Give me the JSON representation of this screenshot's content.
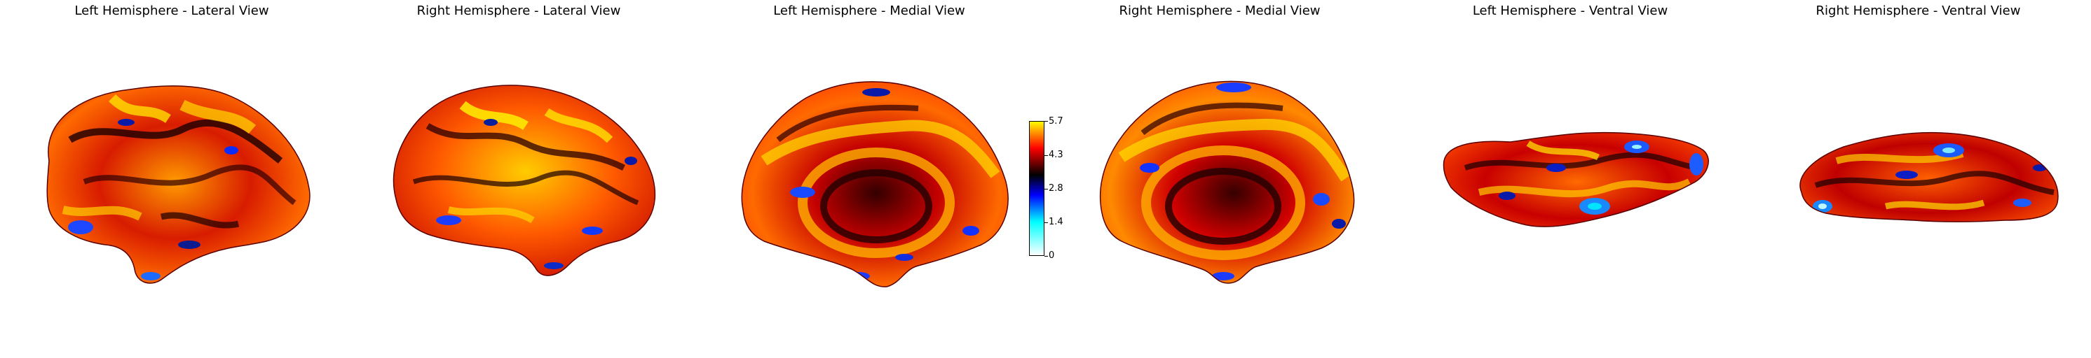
{
  "panels": [
    {
      "title": "Left Hemisphere - Lateral View",
      "view": "lateral",
      "hemisphere": "left"
    },
    {
      "title": "Right Hemisphere - Lateral View",
      "view": "lateral",
      "hemisphere": "right"
    },
    {
      "title": "Left Hemisphere - Medial View",
      "view": "medial",
      "hemisphere": "left"
    },
    {
      "title": "Right Hemisphere - Medial View",
      "view": "medial",
      "hemisphere": "right"
    },
    {
      "title": "Left Hemisphere - Ventral View",
      "view": "ventral",
      "hemisphere": "left"
    },
    {
      "title": "Right Hemisphere - Ventral View",
      "view": "ventral",
      "hemisphere": "right"
    }
  ],
  "colorbar": {
    "ticks": [
      "5.7",
      "4.3",
      "2.8",
      "1.4",
      "0"
    ],
    "min": 0,
    "max": 5.7,
    "colormap": [
      "#ffffff",
      "#00ffff",
      "#0000ff",
      "#000000",
      "#ff0000",
      "#ffff00"
    ]
  }
}
